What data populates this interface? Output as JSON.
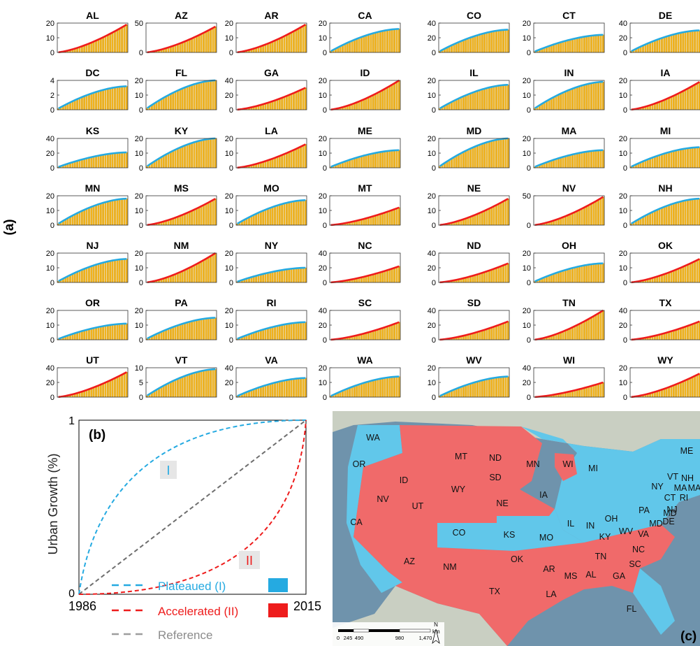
{
  "figure_label_a": "(a)",
  "figure_label_b": "(b)",
  "figure_label_c": "(c)",
  "colors": {
    "bar": "#f0b21c",
    "bar_edge": "#b08000",
    "plateaued": "#25aae1",
    "accelerated": "#ee1c1c",
    "reference": "#6e6e6e",
    "map_blue": "#61c7ea",
    "map_red": "#f06a6a"
  },
  "chart_data": [
    {
      "type": "bar",
      "layout": "small-multiples 7x7",
      "x_years": [
        1986,
        2015
      ],
      "note": "Cumulative urban growth per state; bars with overlaid growth-line colored by growth type",
      "panels": [
        {
          "state": "AL",
          "ymax": 20,
          "yticks": [
            0,
            10,
            20
          ],
          "final": 19,
          "class": "II"
        },
        {
          "state": "AZ",
          "ymax": 50,
          "yticks": [
            0,
            50
          ],
          "final": 44,
          "class": "II"
        },
        {
          "state": "AR",
          "ymax": 20,
          "yticks": [
            0,
            10,
            20
          ],
          "final": 19,
          "class": "II"
        },
        {
          "state": "CA",
          "ymax": 20,
          "yticks": [
            0,
            10,
            20
          ],
          "final": 16,
          "class": "I"
        },
        {
          "state": "CO",
          "ymax": 40,
          "yticks": [
            0,
            20,
            40
          ],
          "final": 31,
          "class": "I"
        },
        {
          "state": "CT",
          "ymax": 20,
          "yticks": [
            0,
            10,
            20
          ],
          "final": 12,
          "class": "I"
        },
        {
          "state": "DE",
          "ymax": 40,
          "yticks": [
            0,
            20,
            40
          ],
          "final": 30,
          "class": "I"
        },
        {
          "state": "DC",
          "ymax": 4,
          "yticks": [
            0,
            2,
            4
          ],
          "final": 3.2,
          "class": "I"
        },
        {
          "state": "FL",
          "ymax": 20,
          "yticks": [
            0,
            10,
            20
          ],
          "final": 20,
          "class": "I"
        },
        {
          "state": "GA",
          "ymax": 40,
          "yticks": [
            0,
            20,
            40
          ],
          "final": 30,
          "class": "II"
        },
        {
          "state": "ID",
          "ymax": 20,
          "yticks": [
            0,
            10,
            20
          ],
          "final": 20,
          "class": "II"
        },
        {
          "state": "IL",
          "ymax": 20,
          "yticks": [
            0,
            10,
            20
          ],
          "final": 17,
          "class": "I"
        },
        {
          "state": "IN",
          "ymax": 20,
          "yticks": [
            0,
            10,
            20
          ],
          "final": 19,
          "class": "I"
        },
        {
          "state": "IA",
          "ymax": 20,
          "yticks": [
            0,
            10,
            20
          ],
          "final": 19,
          "class": "II"
        },
        {
          "state": "KS",
          "ymax": 40,
          "yticks": [
            0,
            20,
            40
          ],
          "final": 21,
          "class": "I"
        },
        {
          "state": "KY",
          "ymax": 20,
          "yticks": [
            0,
            10,
            20
          ],
          "final": 20,
          "class": "I"
        },
        {
          "state": "LA",
          "ymax": 20,
          "yticks": [
            0,
            10,
            20
          ],
          "final": 16,
          "class": "II"
        },
        {
          "state": "ME",
          "ymax": 20,
          "yticks": [
            0,
            10,
            20
          ],
          "final": 12,
          "class": "I"
        },
        {
          "state": "MD",
          "ymax": 20,
          "yticks": [
            0,
            10,
            20
          ],
          "final": 20,
          "class": "I"
        },
        {
          "state": "MA",
          "ymax": 20,
          "yticks": [
            0,
            10,
            20
          ],
          "final": 12,
          "class": "I"
        },
        {
          "state": "MI",
          "ymax": 20,
          "yticks": [
            0,
            10,
            20
          ],
          "final": 14,
          "class": "I"
        },
        {
          "state": "MN",
          "ymax": 20,
          "yticks": [
            0,
            10,
            20
          ],
          "final": 18,
          "class": "I"
        },
        {
          "state": "MS",
          "ymax": 20,
          "yticks": [
            0,
            10,
            20
          ],
          "final": 18,
          "class": "II"
        },
        {
          "state": "MO",
          "ymax": 20,
          "yticks": [
            0,
            10,
            20
          ],
          "final": 17,
          "class": "I"
        },
        {
          "state": "MT",
          "ymax": 20,
          "yticks": [
            0,
            10,
            20
          ],
          "final": 12,
          "class": "II"
        },
        {
          "state": "NE",
          "ymax": 20,
          "yticks": [
            0,
            10,
            20
          ],
          "final": 18,
          "class": "II"
        },
        {
          "state": "NV",
          "ymax": 50,
          "yticks": [
            0,
            50
          ],
          "final": 48,
          "class": "II"
        },
        {
          "state": "NH",
          "ymax": 20,
          "yticks": [
            0,
            10,
            20
          ],
          "final": 18,
          "class": "I"
        },
        {
          "state": "NJ",
          "ymax": 20,
          "yticks": [
            0,
            10,
            20
          ],
          "final": 16,
          "class": "I"
        },
        {
          "state": "NM",
          "ymax": 20,
          "yticks": [
            0,
            10,
            20
          ],
          "final": 20,
          "class": "II"
        },
        {
          "state": "NY",
          "ymax": 20,
          "yticks": [
            0,
            10,
            20
          ],
          "final": 10,
          "class": "I"
        },
        {
          "state": "NC",
          "ymax": 40,
          "yticks": [
            0,
            20,
            40
          ],
          "final": 22,
          "class": "II"
        },
        {
          "state": "ND",
          "ymax": 40,
          "yticks": [
            0,
            20,
            40
          ],
          "final": 26,
          "class": "II"
        },
        {
          "state": "OH",
          "ymax": 20,
          "yticks": [
            0,
            10,
            20
          ],
          "final": 13,
          "class": "I"
        },
        {
          "state": "OK",
          "ymax": 20,
          "yticks": [
            0,
            10,
            20
          ],
          "final": 16,
          "class": "II"
        },
        {
          "state": "OR",
          "ymax": 20,
          "yticks": [
            0,
            10,
            20
          ],
          "final": 11,
          "class": "I"
        },
        {
          "state": "PA",
          "ymax": 20,
          "yticks": [
            0,
            10,
            20
          ],
          "final": 15,
          "class": "I"
        },
        {
          "state": "RI",
          "ymax": 20,
          "yticks": [
            0,
            10,
            20
          ],
          "final": 12,
          "class": "I"
        },
        {
          "state": "SC",
          "ymax": 40,
          "yticks": [
            0,
            20,
            40
          ],
          "final": 24,
          "class": "II"
        },
        {
          "state": "SD",
          "ymax": 40,
          "yticks": [
            0,
            20,
            40
          ],
          "final": 25,
          "class": "II"
        },
        {
          "state": "TN",
          "ymax": 20,
          "yticks": [
            0,
            10,
            20
          ],
          "final": 20,
          "class": "II"
        },
        {
          "state": "TX",
          "ymax": 40,
          "yticks": [
            0,
            20,
            40
          ],
          "final": 25,
          "class": "II"
        },
        {
          "state": "UT",
          "ymax": 40,
          "yticks": [
            0,
            20,
            40
          ],
          "final": 34,
          "class": "II"
        },
        {
          "state": "VT",
          "ymax": 10,
          "yticks": [
            0,
            5,
            10
          ],
          "final": 9.5,
          "class": "I"
        },
        {
          "state": "VA",
          "ymax": 40,
          "yticks": [
            0,
            20,
            40
          ],
          "final": 26,
          "class": "I"
        },
        {
          "state": "WA",
          "ymax": 20,
          "yticks": [
            0,
            10,
            20
          ],
          "final": 14,
          "class": "I"
        },
        {
          "state": "WV",
          "ymax": 20,
          "yticks": [
            0,
            10,
            20
          ],
          "final": 14,
          "class": "I"
        },
        {
          "state": "WI",
          "ymax": 40,
          "yticks": [
            0,
            20,
            40
          ],
          "final": 20,
          "class": "II"
        },
        {
          "state": "WY",
          "ymax": 20,
          "yticks": [
            0,
            10,
            20
          ],
          "final": 16,
          "class": "II"
        }
      ]
    },
    {
      "type": "line",
      "ylabel": "Urban Growth (%)",
      "x_tick_labels": [
        "1986",
        "2015"
      ],
      "y_tick_labels": [
        "0",
        "1"
      ],
      "series": [
        {
          "name": "Plateaued (I)",
          "shape": "concave",
          "color": "#25aae1"
        },
        {
          "name": "Accelerated (II)",
          "shape": "convex",
          "color": "#ee1c1c"
        },
        {
          "name": "Reference",
          "shape": "linear",
          "color": "#8c8c8c"
        }
      ],
      "annotations": [
        "I",
        "II"
      ]
    }
  ],
  "map": {
    "scale_unit": "km",
    "scale_labels": [
      "0",
      "245",
      "490",
      "980",
      "1,470"
    ],
    "north_label": "N",
    "state_labels": [
      {
        "t": "WA",
        "c": "I"
      },
      {
        "t": "OR",
        "c": "I"
      },
      {
        "t": "CA",
        "c": "I"
      },
      {
        "t": "ID",
        "c": "II"
      },
      {
        "t": "NV",
        "c": "II"
      },
      {
        "t": "MT",
        "c": "II"
      },
      {
        "t": "WY",
        "c": "II"
      },
      {
        "t": "UT",
        "c": "II"
      },
      {
        "t": "AZ",
        "c": "II"
      },
      {
        "t": "CO",
        "c": "I"
      },
      {
        "t": "NM",
        "c": "II"
      },
      {
        "t": "ND",
        "c": "II"
      },
      {
        "t": "SD",
        "c": "II"
      },
      {
        "t": "NE",
        "c": "II"
      },
      {
        "t": "KS",
        "c": "I"
      },
      {
        "t": "OK",
        "c": "II"
      },
      {
        "t": "TX",
        "c": "II"
      },
      {
        "t": "MN",
        "c": "I"
      },
      {
        "t": "IA",
        "c": "II"
      },
      {
        "t": "MO",
        "c": "I"
      },
      {
        "t": "AR",
        "c": "II"
      },
      {
        "t": "LA",
        "c": "II"
      },
      {
        "t": "WI",
        "c": "II"
      },
      {
        "t": "IL",
        "c": "I"
      },
      {
        "t": "MS",
        "c": "II"
      },
      {
        "t": "MI",
        "c": "I"
      },
      {
        "t": "IN",
        "c": "I"
      },
      {
        "t": "OH",
        "c": "I"
      },
      {
        "t": "KY",
        "c": "I"
      },
      {
        "t": "TN",
        "c": "II"
      },
      {
        "t": "AL",
        "c": "II"
      },
      {
        "t": "GA",
        "c": "II"
      },
      {
        "t": "FL",
        "c": "I"
      },
      {
        "t": "SC",
        "c": "II"
      },
      {
        "t": "NC",
        "c": "II"
      },
      {
        "t": "VA",
        "c": "I"
      },
      {
        "t": "WV",
        "c": "I"
      },
      {
        "t": "PA",
        "c": "I"
      },
      {
        "t": "NY",
        "c": "I"
      },
      {
        "t": "MD",
        "c": "I"
      },
      {
        "t": "DE",
        "c": "I"
      },
      {
        "t": "NJ",
        "c": "I"
      },
      {
        "t": "CT",
        "c": "I"
      },
      {
        "t": "RI",
        "c": "I"
      },
      {
        "t": "MA",
        "c": "I"
      },
      {
        "t": "VT",
        "c": "I"
      },
      {
        "t": "NH",
        "c": "I"
      },
      {
        "t": "ME",
        "c": "I"
      },
      {
        "t": "MA",
        "c": "I"
      },
      {
        "t": "MD",
        "c": "I"
      }
    ]
  }
}
